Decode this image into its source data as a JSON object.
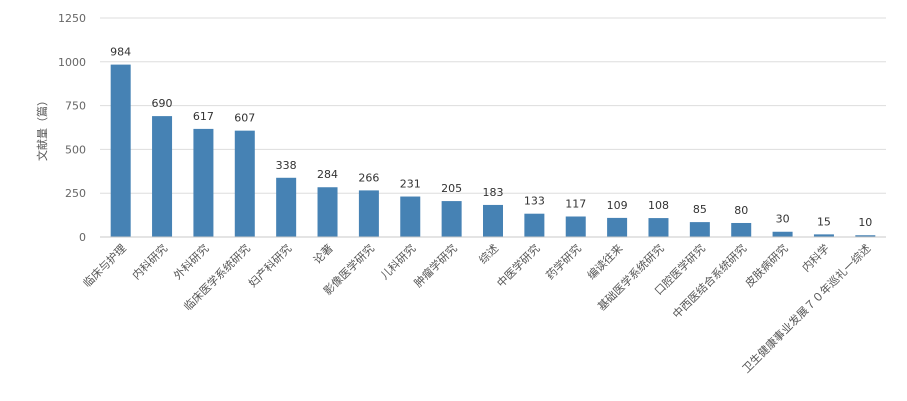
{
  "chart_data": {
    "type": "bar",
    "title": "",
    "xlabel": "",
    "ylabel": "文献量（篇）",
    "ylim": [
      0,
      1250
    ],
    "yticks": [
      0,
      250,
      500,
      750,
      1000,
      1250
    ],
    "grid": true,
    "bar_color": "#4682b4",
    "categories": [
      "临床与护理",
      "内科研究",
      "外科研究",
      "临床医学系统研究",
      "妇产科研究",
      "论著",
      "影像医学研究",
      "儿科研究",
      "肿瘤学研究",
      "综述",
      "中医学研究",
      "药学研究",
      "编读往来",
      "基础医学系统研究",
      "口腔医学研究",
      "中西医结合系统研究",
      "皮肤病研究",
      "内科学",
      "卫生健康事业发展７０年巡礼一综述"
    ],
    "values": [
      984,
      690,
      617,
      607,
      338,
      284,
      266,
      231,
      205,
      183,
      133,
      117,
      109,
      108,
      85,
      80,
      30,
      15,
      10
    ]
  }
}
